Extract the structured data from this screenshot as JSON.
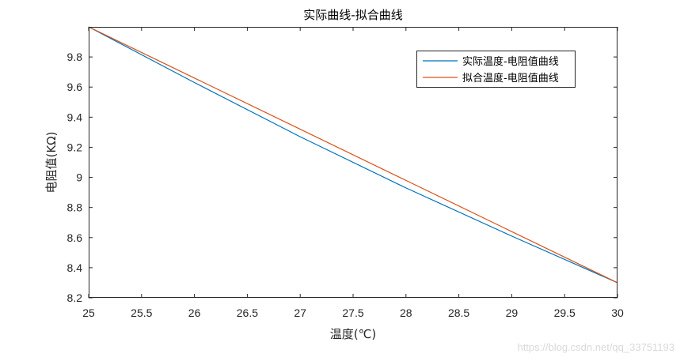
{
  "chart_data": {
    "type": "line",
    "title": "实际曲线-拟合曲线",
    "xlabel": "温度(℃)",
    "ylabel": "电阻值(KΩ)",
    "xlim": [
      25,
      30
    ],
    "ylim": [
      8.2,
      10.0
    ],
    "xticks": [
      "25",
      "25.5",
      "26",
      "26.5",
      "27",
      "27.5",
      "28",
      "28.5",
      "29",
      "29.5",
      "30"
    ],
    "yticks": [
      "8.2",
      "8.4",
      "8.6",
      "8.8",
      "9",
      "9.2",
      "9.4",
      "9.6",
      "9.8"
    ],
    "grid": false,
    "legend_position": "top-right",
    "series": [
      {
        "name": "实际温度-电阻值曲线",
        "color": "#0072BD",
        "x": [
          25,
          26,
          27,
          28,
          29,
          30
        ],
        "values": [
          10.0,
          9.63,
          9.27,
          8.93,
          8.61,
          8.3
        ]
      },
      {
        "name": "拟合温度-电阻值曲线",
        "color": "#D95319",
        "x": [
          25,
          26,
          27,
          28,
          29,
          30
        ],
        "values": [
          10.0,
          9.66,
          9.32,
          8.98,
          8.64,
          8.3
        ]
      }
    ]
  },
  "watermark": "https://blog.csdn.net/qq_33751193"
}
